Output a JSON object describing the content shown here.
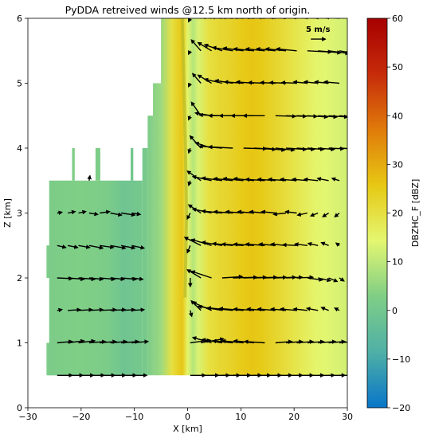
{
  "chart_data": {
    "type": "heatmap",
    "title": "PyDDA retreived winds @12.5 km north of origin.",
    "xlabel": "X [km]",
    "ylabel": "Z [km]",
    "xlim": [
      -30,
      30
    ],
    "ylim": [
      0,
      6
    ],
    "xticks": [
      "−30",
      "−20",
      "−10",
      "0",
      "10",
      "20",
      "30"
    ],
    "yticks": [
      "0",
      "1",
      "2",
      "3",
      "4",
      "5",
      "6"
    ],
    "colorbar": {
      "label": "DBZHC_F [dBZ]",
      "range": [
        -20,
        60
      ],
      "ticks": [
        "−20",
        "−10",
        "0",
        "10",
        "20",
        "30",
        "40",
        "50",
        "60"
      ],
      "colors": [
        "#0875c9",
        "#4fb0a6",
        "#7fce86",
        "#e4f770",
        "#e7c814",
        "#e07b0a",
        "#c62b0a",
        "#a60000"
      ]
    },
    "quiver_key": {
      "label": "5 m/s",
      "speed": 5,
      "x": 24.5,
      "z": 5.68
    },
    "reflectivity_profile": {
      "x": [
        -26,
        -20,
        -15,
        -12,
        -8,
        -5,
        -3,
        -1,
        0,
        1,
        2,
        4,
        6,
        8,
        10,
        12,
        14,
        16,
        18,
        20,
        22,
        24,
        26,
        28,
        30
      ],
      "dbz": [
        2,
        3,
        2,
        -1,
        1,
        6,
        20,
        26,
        15,
        9,
        13,
        20,
        22,
        23,
        25,
        26,
        25,
        23,
        21,
        19,
        17,
        15,
        14,
        13,
        12
      ]
    },
    "echo_columns": [
      {
        "x0": -26,
        "x1": -8.5,
        "z0": 0.5,
        "z1": 3.5
      },
      {
        "x0": -26.5,
        "x1": -24.5,
        "z0": 0.5,
        "z1": 1.0
      },
      {
        "x0": -26.5,
        "x1": -24.5,
        "z0": 2.0,
        "z1": 2.5
      },
      {
        "x0": -21.7,
        "x1": -21.2,
        "z0": 3.5,
        "z1": 4.0
      },
      {
        "x0": -17.3,
        "x1": -16.4,
        "z0": 3.5,
        "z1": 4.0
      },
      {
        "x0": -10.7,
        "x1": -10.2,
        "z0": 3.5,
        "z1": 4.0
      },
      {
        "x0": -8.5,
        "x1": -7.5,
        "z0": 0.5,
        "z1": 4.0
      },
      {
        "x0": -7.5,
        "x1": -6.5,
        "z0": 0.5,
        "z1": 4.5
      },
      {
        "x0": -6.5,
        "x1": -5.0,
        "z0": 0.5,
        "z1": 5.0
      },
      {
        "x0": -5.0,
        "x1": 30,
        "z0": 0.5,
        "z1": 6.0
      }
    ],
    "precip_streak": [
      [
        -1,
        6
      ],
      [
        -0.7,
        5
      ],
      [
        -0.4,
        4
      ],
      [
        -0.2,
        3
      ],
      [
        -0.4,
        2
      ],
      [
        -0.5,
        1.7
      ]
    ],
    "wind_vectors": [
      {
        "z": 0.5,
        "x": [
          -24.5,
          -22.5,
          -20.5,
          -18.5,
          -16.5,
          -14.5,
          -12.5,
          -10.5,
          0.5,
          2.5,
          4.5,
          6.5,
          8.5,
          10.5,
          12.5,
          14.5,
          16.5,
          18.5,
          20.5,
          22.5,
          24.5,
          26.5,
          28.5
        ],
        "u": [
          2.2,
          2.2,
          2.2,
          2.2,
          2.2,
          2.2,
          2.2,
          2.2,
          2.2,
          2.6,
          2.6,
          2.6,
          2.6,
          2.6,
          2.4,
          2.4,
          2.4,
          2.4,
          2.4,
          2.4,
          2.4,
          2.4,
          2.4
        ],
        "w": [
          0,
          0,
          0,
          0,
          0,
          0,
          0,
          0,
          0,
          0,
          0,
          0,
          0,
          0,
          0,
          0,
          0,
          0,
          0,
          0,
          0,
          0,
          0
        ]
      },
      {
        "z": 1.0,
        "x": [
          -24.5,
          -22.5,
          -20.5,
          -18.5,
          -16.5,
          -14.5,
          -12.5,
          -10.5,
          0.5,
          2.5,
          4.5,
          6.5,
          8.5,
          10.5,
          12.5,
          14.5,
          16.5,
          18.5,
          20.5,
          22.5,
          24.5,
          26.5,
          28.5
        ],
        "u": [
          2.2,
          2.4,
          2.4,
          2.4,
          2.4,
          2.4,
          2.6,
          2.4,
          3.0,
          3.4,
          -2.8,
          -3.0,
          -3.0,
          -3.2,
          -3.0,
          -3.0,
          2.4,
          2.4,
          2.4,
          2.4,
          2.6,
          2.4,
          2.2
        ],
        "w": [
          0.2,
          0.3,
          0.3,
          0.2,
          0.2,
          0.2,
          0.2,
          0.2,
          0.4,
          0.6,
          0.8,
          0.5,
          0.3,
          0.3,
          0.3,
          0.2,
          0.2,
          0.2,
          0.2,
          0.2,
          0.2,
          0.2,
          0.2
        ]
      },
      {
        "z": 1.5,
        "x": [
          -24.5,
          -22.5,
          -20.5,
          -18.5,
          -16.5,
          -14.5,
          -12.5,
          -10.5,
          0.5,
          2.5,
          4.5,
          6.5,
          8.5,
          10.5,
          12.5,
          14.5,
          16.5,
          18.5,
          20.5,
          22.5,
          24.5,
          26.5,
          28.5
        ],
        "u": [
          0.6,
          1.8,
          2.0,
          2.0,
          2.4,
          2.2,
          2.0,
          1.8,
          0.2,
          -1.4,
          -2.8,
          -3.6,
          -3.8,
          -3.6,
          -3.0,
          -2.6,
          -2.6,
          -2.2,
          -2.4,
          -2.0,
          -1.6,
          -1.0,
          -0.6
        ],
        "w": [
          0.1,
          0.1,
          0.1,
          0.1,
          0.1,
          0.1,
          0.1,
          0.1,
          -0.8,
          1.4,
          1.2,
          0.6,
          0.4,
          0.3,
          0.2,
          0.2,
          0.2,
          0.2,
          0.2,
          0.2,
          0.3,
          0.4,
          0.3
        ]
      },
      {
        "z": 2.0,
        "x": [
          -24.5,
          -22.5,
          -20.5,
          -18.5,
          -16.5,
          -14.5,
          -12.5,
          -10.5,
          0.5,
          2.5,
          4.5,
          6.5,
          8.5,
          10.5,
          12.5,
          14.5,
          16.5,
          18.5,
          20.5,
          22.5,
          24.5,
          26.5,
          28.5
        ],
        "u": [
          2.2,
          2.4,
          2.4,
          2.0,
          2.2,
          2.0,
          2.2,
          1.6,
          0.0,
          -2.0,
          -3.0,
          3.0,
          3.6,
          3.4,
          3.4,
          3.2,
          3.0,
          2.4,
          2.4,
          2.2,
          1.8,
          1.2,
          0.6
        ],
        "w": [
          -0.1,
          -0.2,
          -0.2,
          -0.2,
          -0.2,
          -0.2,
          -0.2,
          -0.2,
          -1.2,
          1.2,
          1.0,
          0.2,
          0.1,
          0.1,
          0.1,
          0.1,
          0.1,
          0.1,
          0.1,
          -0.3,
          -0.4,
          -0.5,
          -0.4
        ]
      },
      {
        "z": 2.5,
        "x": [
          -24.5,
          -22.5,
          -20.5,
          -18.5,
          -16.5,
          -14.5,
          -12.5,
          -10.5,
          0.5,
          2.5,
          4.5,
          6.5,
          8.5,
          10.5,
          12.5,
          14.5,
          16.5,
          18.5,
          20.5,
          22.5,
          24.5,
          26.5,
          28.5
        ],
        "u": [
          1.2,
          1.4,
          1.6,
          2.0,
          2.0,
          2.2,
          2.0,
          1.8,
          -0.4,
          -2.4,
          -3.0,
          -3.0,
          -3.0,
          -3.2,
          -3.0,
          -2.8,
          -2.4,
          -2.2,
          -2.0,
          -1.8,
          -1.4,
          -1.0,
          -0.4
        ],
        "w": [
          -0.3,
          -0.3,
          -0.3,
          -0.4,
          -0.3,
          -0.4,
          -0.4,
          -0.4,
          -1.0,
          1.2,
          0.9,
          0.5,
          0.3,
          0.2,
          0.2,
          0.2,
          0.2,
          0.2,
          0.1,
          0.2,
          0.3,
          0.4,
          0.3
        ]
      },
      {
        "z": 3.0,
        "x": [
          -24.5,
          -22.5,
          -20.5,
          -18.5,
          -16.5,
          -14.5,
          -12.5,
          -10.5,
          0.5,
          2.5,
          4.5,
          6.5,
          8.5,
          10.5,
          12.5,
          14.5,
          16.5,
          18.5,
          20.5,
          22.5,
          24.5,
          26.5,
          28.5
        ],
        "u": [
          0.6,
          1.0,
          1.0,
          1.2,
          1.4,
          1.6,
          2.0,
          1.2,
          -0.4,
          -1.8,
          -2.8,
          -3.0,
          -2.8,
          -2.6,
          -2.4,
          -2.2,
          -2.0,
          -1.8,
          -1.6,
          -1.4,
          -1.0,
          -0.8,
          -0.6
        ],
        "w": [
          0.1,
          0.2,
          0.2,
          -0.2,
          0.2,
          -0.3,
          -0.3,
          -0.2,
          -0.8,
          1.2,
          0.6,
          0.3,
          0.2,
          0.2,
          0.2,
          0.2,
          0.2,
          -0.2,
          0.2,
          -0.3,
          -0.4,
          -0.5,
          -0.5
        ]
      },
      {
        "z": 3.5,
        "x": [
          -18.5,
          0.5,
          2.5,
          4.5,
          6.5,
          8.5,
          10.5,
          12.5,
          14.5,
          16.5,
          18.5,
          20.5,
          22.5,
          24.5,
          26.5,
          28.5
        ],
        "u": [
          0.1,
          -0.2,
          -2.0,
          -2.8,
          -3.0,
          -2.8,
          -3.0,
          -3.0,
          -2.8,
          -2.6,
          -2.6,
          -2.4,
          -2.2,
          -2.0,
          -1.6,
          -1.0
        ],
        "w": [
          0.6,
          -0.6,
          1.4,
          0.6,
          0.4,
          0.3,
          0.3,
          0.3,
          0.2,
          0.2,
          0.2,
          0.2,
          0.2,
          0.2,
          0.3,
          0.3
        ]
      },
      {
        "z": 4.0,
        "x": [
          0.5,
          2.5,
          4.5,
          6.5,
          8.5,
          10.5,
          12.5,
          14.5,
          16.5,
          18.5,
          20.5,
          22.5,
          24.5,
          26.5,
          28.5
        ],
        "u": [
          -0.2,
          -1.6,
          -2.4,
          -3.4,
          -3.6,
          3.4,
          3.2,
          3.0,
          2.8,
          3.0,
          2.6,
          2.4,
          2.4,
          2.2,
          2.0
        ],
        "w": [
          -0.6,
          1.8,
          0.8,
          0.3,
          0.2,
          -0.1,
          -0.2,
          -0.3,
          -0.3,
          -0.2,
          -0.2,
          -0.2,
          -0.2,
          -0.1,
          -0.1
        ]
      },
      {
        "z": 4.5,
        "x": [
          0.5,
          2.5,
          4.5,
          6.5,
          8.5,
          10.5,
          12.5,
          14.5,
          16.5,
          18.5,
          20.5,
          22.5,
          24.5,
          26.5,
          28.5
        ],
        "u": [
          -0.2,
          -1.4,
          -2.4,
          -3.4,
          -3.6,
          -3.6,
          -3.4,
          -3.2,
          3.0,
          3.0,
          3.0,
          3.0,
          2.8,
          2.8,
          2.6
        ],
        "w": [
          -0.5,
          2.0,
          0.4,
          0.1,
          0.0,
          0.0,
          0.0,
          0.0,
          -0.1,
          -0.1,
          -0.1,
          -0.2,
          -0.2,
          -0.2,
          -0.2
        ]
      },
      {
        "z": 5.0,
        "x": [
          0.5,
          2.5,
          4.5,
          6.5,
          8.5,
          10.5,
          12.5,
          14.5,
          16.5,
          18.5,
          20.5,
          22.5,
          24.5,
          26.5,
          28.5
        ],
        "u": [
          -0.2,
          -1.2,
          -2.0,
          -2.6,
          -2.6,
          -2.8,
          -2.6,
          -2.4,
          -2.2,
          -2.4,
          -2.2,
          -2.0,
          -2.0,
          -2.0,
          -2.2
        ],
        "w": [
          -0.4,
          1.4,
          1.2,
          0.6,
          0.4,
          0.2,
          0.2,
          0.1,
          0.1,
          0.1,
          0.1,
          0.2,
          0.2,
          0.2,
          0.2
        ]
      },
      {
        "z": 5.5,
        "x": [
          0.5,
          2.5,
          4.5,
          6.5,
          8.5,
          10.5,
          12.5,
          14.5,
          16.5,
          18.5,
          20.5,
          22.5,
          24.5,
          26.5,
          28.5
        ],
        "u": [
          -0.2,
          -1.4,
          -2.0,
          -2.6,
          -3.0,
          -3.0,
          -3.0,
          -2.8,
          -2.8,
          -3.0,
          -3.0,
          3.6,
          3.4,
          3.0,
          2.8
        ],
        "w": [
          -0.4,
          1.6,
          1.2,
          0.9,
          0.5,
          0.4,
          0.3,
          0.3,
          0.3,
          0.3,
          0.3,
          -0.2,
          -0.3,
          -0.4,
          -0.5
        ]
      },
      {
        "z": 6.0,
        "x": [
          0.5,
          2.5,
          4.5,
          6.5,
          8.5,
          10.5,
          12.5,
          14.5,
          16.5,
          18.5,
          20.5,
          22.5,
          24.5,
          26.5,
          28.5
        ],
        "u": [
          -0.2,
          -1.2,
          -2.4,
          -3.0,
          -3.2,
          -3.2,
          -3.0,
          -2.8,
          -2.6,
          -2.4,
          -2.2,
          -2.2,
          -2.0,
          -2.0,
          -2.0
        ],
        "w": [
          -0.4,
          0.6,
          0.3,
          0.2,
          0.2,
          0.2,
          0.2,
          0.2,
          0.2,
          0.2,
          0.2,
          0.2,
          0.2,
          0.2,
          0.2
        ]
      }
    ]
  }
}
